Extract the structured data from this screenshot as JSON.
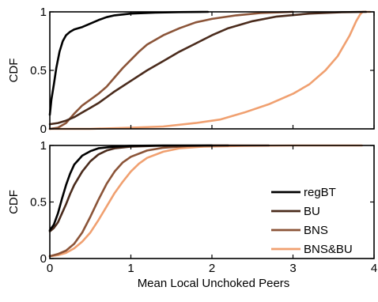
{
  "colors": {
    "regBT": "#000000",
    "BU": "#4a2b1c",
    "BNS": "#8b5438",
    "BNS&BU": "#f0a070"
  },
  "chart_data": [
    {
      "type": "line",
      "title": "",
      "xlabel": "",
      "ylabel": "CDF",
      "xlim": [
        0,
        4
      ],
      "ylim": [
        0,
        1
      ],
      "xticks": [
        0,
        1,
        2,
        3,
        4
      ],
      "xtick_labels": [],
      "yticks": [
        0,
        0.5,
        1
      ],
      "ytick_labels": [
        "0",
        "0.5",
        "1"
      ],
      "grid": false,
      "legend": null,
      "series": [
        {
          "name": "regBT",
          "color": "#000000",
          "points": [
            [
              0.0,
              0.12
            ],
            [
              0.02,
              0.25
            ],
            [
              0.05,
              0.38
            ],
            [
              0.08,
              0.52
            ],
            [
              0.12,
              0.66
            ],
            [
              0.16,
              0.75
            ],
            [
              0.2,
              0.8
            ],
            [
              0.25,
              0.83
            ],
            [
              0.3,
              0.85
            ],
            [
              0.4,
              0.87
            ],
            [
              0.5,
              0.9
            ],
            [
              0.6,
              0.93
            ],
            [
              0.7,
              0.955
            ],
            [
              0.8,
              0.97
            ],
            [
              1.0,
              0.985
            ],
            [
              1.3,
              0.993
            ],
            [
              1.6,
              0.998
            ],
            [
              1.95,
              1.0
            ]
          ]
        },
        {
          "name": "BU",
          "color": "#4a2b1c",
          "points": [
            [
              0.0,
              0.04
            ],
            [
              0.1,
              0.05
            ],
            [
              0.2,
              0.07
            ],
            [
              0.3,
              0.1
            ],
            [
              0.4,
              0.14
            ],
            [
              0.5,
              0.18
            ],
            [
              0.6,
              0.22
            ],
            [
              0.7,
              0.27
            ],
            [
              0.8,
              0.32
            ],
            [
              1.0,
              0.41
            ],
            [
              1.2,
              0.5
            ],
            [
              1.4,
              0.58
            ],
            [
              1.6,
              0.66
            ],
            [
              1.8,
              0.73
            ],
            [
              2.0,
              0.8
            ],
            [
              2.2,
              0.86
            ],
            [
              2.5,
              0.92
            ],
            [
              2.8,
              0.96
            ],
            [
              3.2,
              0.985
            ],
            [
              3.6,
              0.997
            ],
            [
              3.9,
              1.0
            ]
          ]
        },
        {
          "name": "BNS",
          "color": "#8b5438",
          "points": [
            [
              0.0,
              0.0
            ],
            [
              0.1,
              0.01
            ],
            [
              0.2,
              0.05
            ],
            [
              0.3,
              0.13
            ],
            [
              0.4,
              0.2
            ],
            [
              0.5,
              0.25
            ],
            [
              0.6,
              0.3
            ],
            [
              0.7,
              0.36
            ],
            [
              0.8,
              0.44
            ],
            [
              0.9,
              0.52
            ],
            [
              1.0,
              0.59
            ],
            [
              1.1,
              0.66
            ],
            [
              1.2,
              0.72
            ],
            [
              1.4,
              0.8
            ],
            [
              1.6,
              0.86
            ],
            [
              1.8,
              0.91
            ],
            [
              2.0,
              0.94
            ],
            [
              2.3,
              0.97
            ],
            [
              2.6,
              0.99
            ],
            [
              3.0,
              1.0
            ]
          ]
        },
        {
          "name": "BNS&BU",
          "color": "#f0a070",
          "points": [
            [
              0.0,
              0.0
            ],
            [
              0.5,
              0.0
            ],
            [
              1.0,
              0.01
            ],
            [
              1.4,
              0.02
            ],
            [
              1.8,
              0.05
            ],
            [
              2.1,
              0.08
            ],
            [
              2.4,
              0.14
            ],
            [
              2.7,
              0.21
            ],
            [
              3.0,
              0.3
            ],
            [
              3.2,
              0.38
            ],
            [
              3.4,
              0.5
            ],
            [
              3.55,
              0.62
            ],
            [
              3.7,
              0.8
            ],
            [
              3.78,
              0.92
            ],
            [
              3.83,
              0.98
            ],
            [
              3.86,
              1.0
            ],
            [
              3.95,
              1.0
            ]
          ]
        }
      ]
    },
    {
      "type": "line",
      "title": "",
      "xlabel": "Mean Local Unchoked Peers",
      "ylabel": "CDF",
      "xlim": [
        0,
        4
      ],
      "ylim": [
        0,
        1
      ],
      "xticks": [
        0,
        1,
        2,
        3,
        4
      ],
      "xtick_labels": [
        "0",
        "1",
        "2",
        "3",
        "4"
      ],
      "yticks": [
        0,
        0.5,
        1
      ],
      "ytick_labels": [
        "0",
        "0.5",
        "1"
      ],
      "grid": false,
      "legend": "bottom-right",
      "series": [
        {
          "name": "regBT",
          "color": "#000000",
          "points": [
            [
              0.0,
              0.25
            ],
            [
              0.05,
              0.3
            ],
            [
              0.1,
              0.4
            ],
            [
              0.15,
              0.53
            ],
            [
              0.2,
              0.65
            ],
            [
              0.25,
              0.75
            ],
            [
              0.3,
              0.83
            ],
            [
              0.4,
              0.91
            ],
            [
              0.5,
              0.95
            ],
            [
              0.6,
              0.975
            ],
            [
              0.8,
              0.99
            ],
            [
              1.0,
              0.997
            ],
            [
              1.4,
              1.0
            ],
            [
              2.0,
              1.0
            ]
          ]
        },
        {
          "name": "BU",
          "color": "#4a2b1c",
          "points": [
            [
              0.0,
              0.24
            ],
            [
              0.05,
              0.27
            ],
            [
              0.1,
              0.32
            ],
            [
              0.15,
              0.4
            ],
            [
              0.2,
              0.48
            ],
            [
              0.25,
              0.57
            ],
            [
              0.3,
              0.65
            ],
            [
              0.4,
              0.77
            ],
            [
              0.5,
              0.86
            ],
            [
              0.6,
              0.92
            ],
            [
              0.7,
              0.955
            ],
            [
              0.8,
              0.975
            ],
            [
              1.0,
              0.99
            ],
            [
              1.3,
              0.997
            ],
            [
              2.2,
              1.0
            ]
          ]
        },
        {
          "name": "BNS",
          "color": "#8b5438",
          "points": [
            [
              0.0,
              0.02
            ],
            [
              0.1,
              0.04
            ],
            [
              0.2,
              0.07
            ],
            [
              0.3,
              0.13
            ],
            [
              0.4,
              0.23
            ],
            [
              0.5,
              0.37
            ],
            [
              0.6,
              0.52
            ],
            [
              0.7,
              0.66
            ],
            [
              0.8,
              0.77
            ],
            [
              0.9,
              0.85
            ],
            [
              1.0,
              0.9
            ],
            [
              1.2,
              0.955
            ],
            [
              1.4,
              0.98
            ],
            [
              1.7,
              0.995
            ],
            [
              2.0,
              1.0
            ],
            [
              2.7,
              1.0
            ]
          ]
        },
        {
          "name": "BNS&BU",
          "color": "#f0a070",
          "points": [
            [
              0.0,
              0.02
            ],
            [
              0.1,
              0.03
            ],
            [
              0.2,
              0.05
            ],
            [
              0.3,
              0.09
            ],
            [
              0.4,
              0.15
            ],
            [
              0.5,
              0.23
            ],
            [
              0.6,
              0.34
            ],
            [
              0.7,
              0.46
            ],
            [
              0.8,
              0.58
            ],
            [
              0.9,
              0.68
            ],
            [
              1.0,
              0.77
            ],
            [
              1.1,
              0.84
            ],
            [
              1.2,
              0.89
            ],
            [
              1.4,
              0.945
            ],
            [
              1.6,
              0.975
            ],
            [
              1.9,
              0.99
            ],
            [
              2.4,
              0.997
            ],
            [
              3.0,
              1.0
            ],
            [
              3.85,
              1.0
            ]
          ]
        }
      ]
    }
  ]
}
